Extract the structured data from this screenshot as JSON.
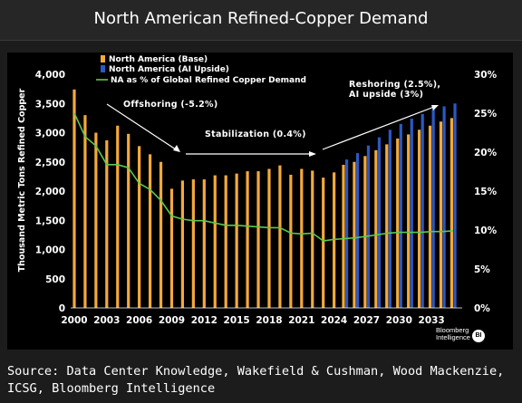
{
  "title": "North American Refined-Copper Demand",
  "source": "Source: Data Center Knowledge, Wakefield & Cushman, Wood Mackenzie, ICSG, Bloomberg Intelligence",
  "brand": {
    "line1": "Bloomberg",
    "line2": "Intelligence",
    "badge": "BI"
  },
  "colors": {
    "base": "#f4a93b",
    "ai": "#2b59c3",
    "line": "#5cc84e",
    "background": "#000000",
    "text": "#ffffff"
  },
  "chart_data": {
    "type": "bar",
    "title": "North American Refined-Copper Demand",
    "ylabel": "Thousand Metric Tons Refined Copper",
    "ylim": [
      0,
      4000
    ],
    "y2lim": [
      0,
      30
    ],
    "y_ticks": [
      "0",
      "500",
      "1,000",
      "1,500",
      "2,000",
      "2,500",
      "3,000",
      "3,500",
      "4,000"
    ],
    "y2_ticks": [
      "0%",
      "5%",
      "10%",
      "15%",
      "20%",
      "25%",
      "30%"
    ],
    "x_tick_labels": [
      "2000",
      "2003",
      "2006",
      "2009",
      "2012",
      "2015",
      "2018",
      "2021",
      "2024",
      "2027",
      "2030",
      "2033"
    ],
    "grid": false,
    "legend_position": "top-left",
    "categories": [
      2000,
      2001,
      2002,
      2003,
      2004,
      2005,
      2006,
      2007,
      2008,
      2009,
      2010,
      2011,
      2012,
      2013,
      2014,
      2015,
      2016,
      2017,
      2018,
      2019,
      2020,
      2021,
      2022,
      2023,
      2024,
      2025,
      2026,
      2027,
      2028,
      2029,
      2030,
      2031,
      2032,
      2033,
      2034,
      2035
    ],
    "series": [
      {
        "name": "North America (Base)",
        "kind": "bar",
        "values": [
          3740,
          3300,
          3000,
          2870,
          3120,
          2980,
          2770,
          2630,
          2500,
          2040,
          2180,
          2200,
          2200,
          2270,
          2270,
          2300,
          2340,
          2340,
          2380,
          2440,
          2280,
          2380,
          2350,
          2230,
          2320,
          2450,
          2500,
          2600,
          2700,
          2800,
          2900,
          2970,
          3050,
          3120,
          3190,
          3250
        ]
      },
      {
        "name": "North America (AI Upside)",
        "kind": "bar",
        "values": [
          null,
          null,
          null,
          null,
          null,
          null,
          null,
          null,
          null,
          null,
          null,
          null,
          null,
          null,
          null,
          null,
          null,
          null,
          null,
          null,
          null,
          null,
          null,
          null,
          null,
          2540,
          2650,
          2780,
          2920,
          3050,
          3150,
          3240,
          3320,
          3400,
          3450,
          3500
        ]
      },
      {
        "name": "NA as % of Global Refined Copper Demand",
        "kind": "line",
        "axis": "right",
        "values": [
          25.0,
          22.0,
          20.8,
          18.4,
          18.4,
          18.0,
          16.0,
          15.2,
          13.8,
          11.8,
          11.4,
          11.2,
          11.2,
          10.9,
          10.6,
          10.6,
          10.5,
          10.4,
          10.3,
          10.3,
          9.6,
          9.5,
          9.6,
          8.6,
          8.8,
          8.9,
          9.0,
          9.2,
          9.4,
          9.6,
          9.7,
          9.7,
          9.7,
          9.8,
          9.8,
          9.9
        ]
      }
    ],
    "annotations": [
      {
        "text": "Offshoring (-5.2%)"
      },
      {
        "text": "Stabilization (0.4%)"
      },
      {
        "text": "Reshoring (2.5%),"
      },
      {
        "text": "AI upside (3%)"
      }
    ]
  }
}
